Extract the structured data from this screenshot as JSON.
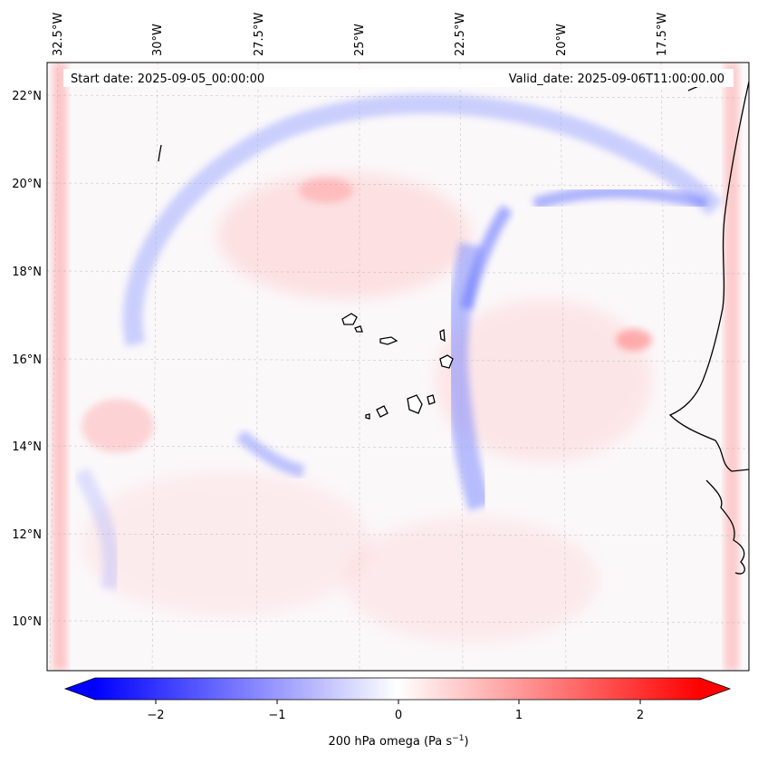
{
  "figure": {
    "start_label": "Start date: 2025-09-05_00:00:00",
    "valid_label": "Valid_date: 2025-09-06T11:00:00.00",
    "colorbar_label": "200 hPa omega (Pa s",
    "colorbar_unit_exp": "−1",
    "colorbar_unit_close": ")"
  },
  "lon_ticks": [
    "32.5°W",
    "30°W",
    "27.5°W",
    "25°W",
    "22.5°W",
    "20°W",
    "17.5°W"
  ],
  "lat_ticks": [
    "22°N",
    "20°N",
    "18°N",
    "16°N",
    "14°N",
    "12°N",
    "10°N"
  ],
  "colorbar_ticks": [
    "−2",
    "−1",
    "0",
    "1",
    "2"
  ],
  "colors": {
    "negative": "#0000ff",
    "neutral": "#ffffff",
    "positive": "#ff0000",
    "coastline": "#000000"
  }
}
